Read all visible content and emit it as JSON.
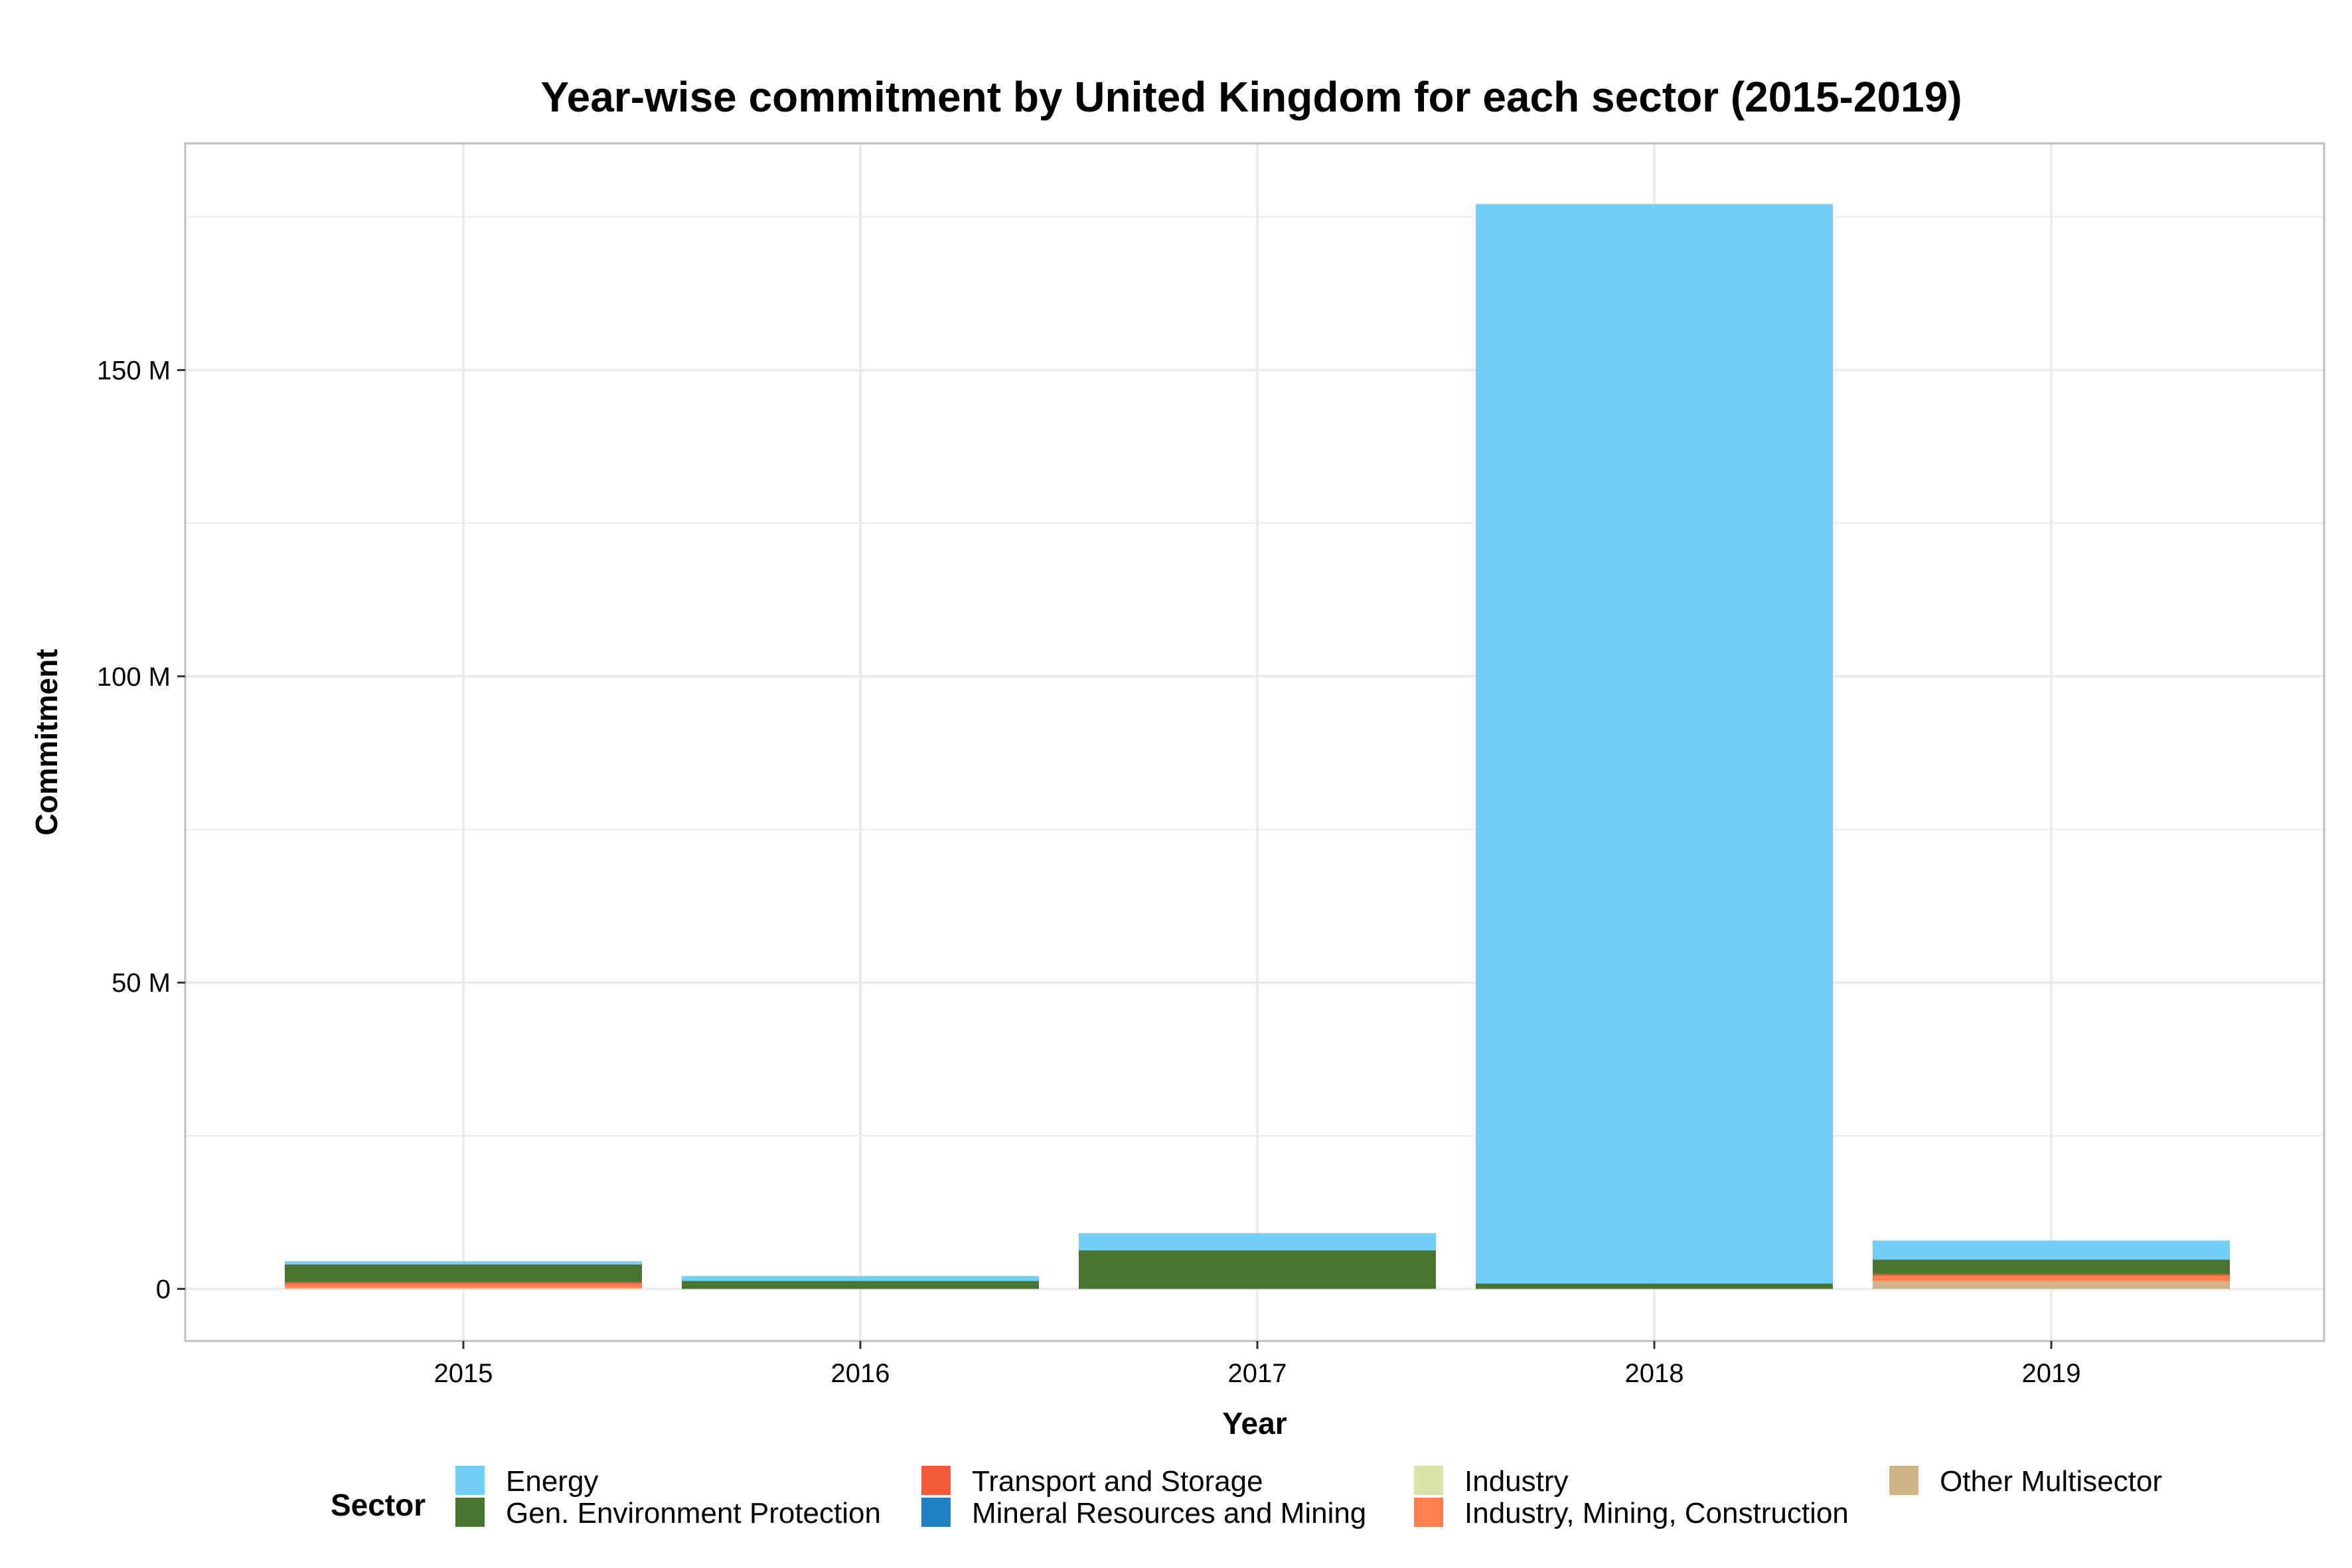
{
  "chart_data": {
    "type": "bar",
    "stacked": true,
    "title": "Year-wise commitment by United Kingdom for each sector (2015-2019)",
    "xlabel": "Year",
    "ylabel": "Commitment",
    "categories": [
      "2015",
      "2016",
      "2017",
      "2018",
      "2019"
    ],
    "ylim": [
      -8.5,
      187
    ],
    "y_ticks": [
      0,
      50,
      100,
      150
    ],
    "y_tick_labels": [
      "0",
      "50 M",
      "100 M",
      "150 M"
    ],
    "value_unit": "M",
    "grid": true,
    "legend_title": "Sector",
    "legend_position": "bottom",
    "series": [
      {
        "name": "Other Multisector",
        "color": "#D2B48C",
        "values": [
          0.2,
          0.0,
          0.0,
          0.0,
          1.3
        ]
      },
      {
        "name": "Industry, Mining, Construction",
        "color": "#FF7F50",
        "values": [
          0.6,
          0.0,
          0.0,
          0.0,
          0.8
        ]
      },
      {
        "name": "Industry",
        "color": "#D8E4A8",
        "values": [
          0.0,
          0.0,
          0.0,
          0.0,
          0.0
        ]
      },
      {
        "name": "Mineral Resources and Mining",
        "color": "#1C7FC4",
        "values": [
          0.0,
          0.0,
          0.0,
          0.0,
          0.0
        ]
      },
      {
        "name": "Transport and Storage",
        "color": "#F25C3B",
        "values": [
          0.3,
          0.0,
          0.0,
          0.0,
          0.3
        ]
      },
      {
        "name": "Gen. Environment Protection",
        "color": "#4A7530",
        "values": [
          2.9,
          1.3,
          6.3,
          0.9,
          2.4
        ]
      },
      {
        "name": "Energy",
        "color": "#72CFF7",
        "values": [
          0.5,
          0.8,
          2.8,
          176.2,
          3.1
        ]
      }
    ],
    "legend_order": [
      "Energy",
      "Gen. Environment Protection",
      "Transport and Storage",
      "Mineral Resources and Mining",
      "Industry",
      "Industry, Mining, Construction",
      "Other Multisector"
    ]
  },
  "colors": {
    "panel_border": "#BEBEBE",
    "grid": "#EBEBEB",
    "background": "#FFFFFF"
  }
}
